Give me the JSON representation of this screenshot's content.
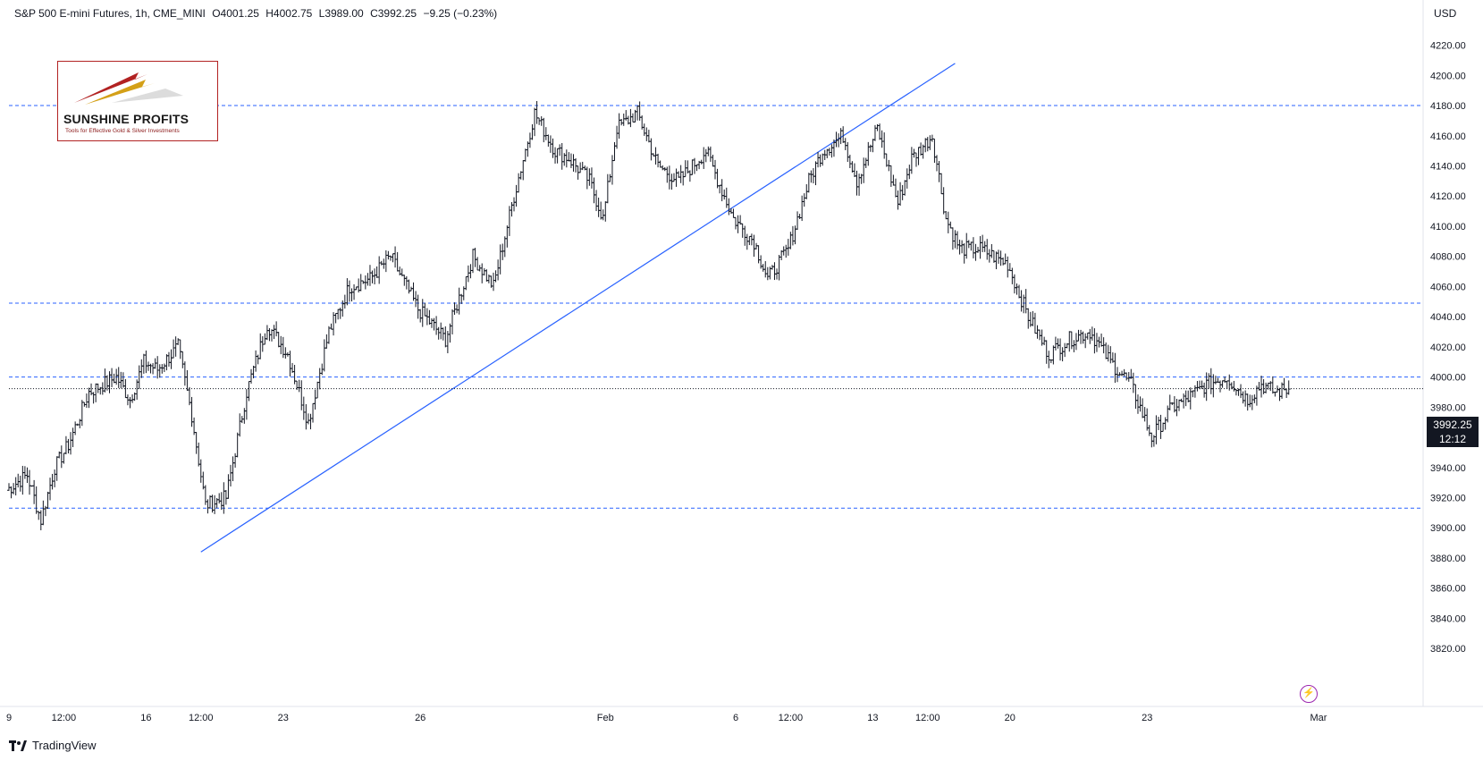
{
  "header": {
    "symbol": "S&P 500 E-mini Futures, 1h, CME_MINI",
    "open": "O4001.25",
    "high": "H4002.75",
    "low": "L3989.00",
    "close": "C3992.25",
    "change": "−9.25 (−0.23%)"
  },
  "logo": {
    "name": "SUNSHINE PROFITS",
    "tagline": "Tools for Effective Gold & Silver Investments"
  },
  "axis": {
    "currency": "USD",
    "last_price": "3992.25",
    "countdown": "12:12"
  },
  "footer": {
    "brand": "TradingView"
  },
  "colors": {
    "candle": "#131722",
    "trendline": "#2962ff",
    "level": "#2962ff",
    "price_tag_bg": "#131722",
    "accent": "#9c27b0"
  },
  "chart_data": {
    "type": "line",
    "title": "",
    "ylim": [
      3810,
      4250
    ],
    "y_ticks": [
      3820,
      3840,
      3860,
      3880,
      3900,
      3920,
      3940,
      3960,
      3980,
      4000,
      4020,
      4040,
      4060,
      4080,
      4100,
      4120,
      4140,
      4160,
      4180,
      4200,
      4220
    ],
    "x_ticks": [
      {
        "label": "9",
        "pos": 0.0
      },
      {
        "label": "12:00",
        "pos": 0.4
      },
      {
        "label": "16",
        "pos": 1.0
      },
      {
        "label": "12:00",
        "pos": 1.4
      },
      {
        "label": "23",
        "pos": 2.0
      },
      {
        "label": "26",
        "pos": 3.0
      },
      {
        "label": "Feb",
        "pos": 4.35
      },
      {
        "label": "6",
        "pos": 5.3
      },
      {
        "label": "12:00",
        "pos": 5.7
      },
      {
        "label": "13",
        "pos": 6.3
      },
      {
        "label": "12:00",
        "pos": 6.7
      },
      {
        "label": "20",
        "pos": 7.3
      },
      {
        "label": "23",
        "pos": 8.3
      },
      {
        "label": "Mar",
        "pos": 9.55
      }
    ],
    "horizontal_levels": [
      3913,
      4000,
      4049,
      4180
    ],
    "trendline": {
      "x1": 1.4,
      "y1": 3884,
      "x2": 6.9,
      "y2": 4208
    },
    "last_price": 3992.25,
    "series": [
      {
        "type": "price",
        "x": [
          0.0,
          0.15,
          0.25,
          0.35,
          0.45,
          0.6,
          0.8,
          0.9,
          1.0,
          1.1,
          1.25,
          1.35,
          1.45,
          1.6,
          1.75,
          1.9,
          2.05,
          2.2,
          2.35,
          2.5,
          2.65,
          2.8,
          3.0,
          3.2,
          3.4,
          3.55,
          3.7,
          3.85,
          4.0,
          4.1,
          4.25,
          4.35,
          4.45,
          4.6,
          4.75,
          4.9,
          5.1,
          5.3,
          5.45,
          5.55,
          5.7,
          5.85,
          5.95,
          6.1,
          6.2,
          6.35,
          6.5,
          6.6,
          6.75,
          6.85,
          6.95,
          7.1,
          7.3,
          7.45,
          7.6,
          7.75,
          7.9,
          8.05,
          8.2,
          8.35,
          8.5,
          8.6,
          8.75,
          8.9,
          9.05,
          9.15,
          9.25,
          9.35
        ],
        "values": [
          3925,
          3935,
          3905,
          3940,
          3955,
          3990,
          4000,
          3985,
          4010,
          4005,
          4020,
          3975,
          3915,
          3920,
          3990,
          4035,
          4015,
          3970,
          4030,
          4060,
          4065,
          4080,
          4045,
          4025,
          4080,
          4060,
          4120,
          4175,
          4150,
          4145,
          4130,
          4105,
          4165,
          4175,
          4140,
          4130,
          4150,
          4105,
          4090,
          4065,
          4085,
          4130,
          4150,
          4160,
          4130,
          4165,
          4115,
          4145,
          4160,
          4105,
          4085,
          4085,
          4075,
          4040,
          4015,
          4025,
          4030,
          4010,
          3995,
          3960,
          3980,
          3985,
          3995,
          4000,
          3985,
          3995,
          3990,
          3992
        ]
      }
    ]
  }
}
